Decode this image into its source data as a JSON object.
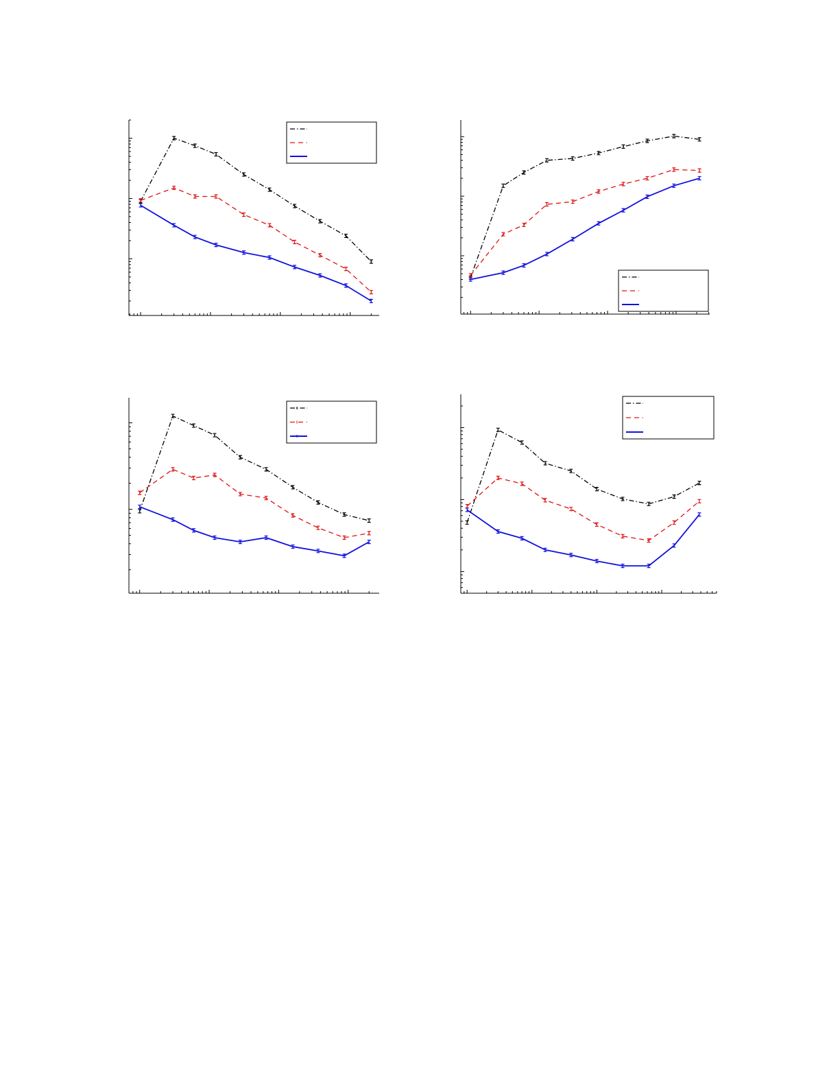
{
  "chart_data": [
    {
      "type": "line",
      "x_scale": "log",
      "y_scale": "log",
      "xlim": [
        0.68,
        2600
      ],
      "ylim": [
        0.115,
        200
      ],
      "grid": false,
      "legend": "top-right",
      "x": [
        1,
        3,
        6,
        12,
        30,
        70,
        160,
        370,
        870,
        2000
      ],
      "series": [
        {
          "style": "dash-dot",
          "color": "#000000",
          "values": [
            9,
            100,
            75,
            54,
            25,
            14,
            7.5,
            4.2,
            2.4,
            0.9
          ]
        },
        {
          "style": "dashed",
          "color": "#e01010",
          "values": [
            9.3,
            15,
            10.8,
            10.8,
            5.4,
            3.6,
            1.9,
            1.15,
            0.68,
            0.28
          ]
        },
        {
          "style": "solid",
          "color": "#1010e0",
          "values": [
            7.7,
            3.6,
            2.3,
            1.7,
            1.27,
            1.05,
            0.73,
            0.53,
            0.36,
            0.2
          ]
        }
      ]
    },
    {
      "type": "line",
      "x_scale": "log",
      "y_scale": "log",
      "xlim": [
        0.72,
        3100
      ],
      "ylim": [
        0.105,
        190
      ],
      "grid": false,
      "legend": "bottom-right",
      "x": [
        1,
        3,
        6,
        13,
        31,
        74,
        170,
        380,
        930,
        2200
      ],
      "series": [
        {
          "style": "dash-dot",
          "color": "#000000",
          "values": [
            0.43,
            15,
            25,
            40,
            43,
            53,
            68,
            85,
            102,
            90
          ]
        },
        {
          "style": "dashed",
          "color": "#e01010",
          "values": [
            0.47,
            2.3,
            3.3,
            7.3,
            8.1,
            12,
            16,
            20,
            28,
            27
          ]
        },
        {
          "style": "solid",
          "color": "#1010e0",
          "values": [
            0.4,
            0.52,
            0.69,
            1.07,
            1.9,
            3.5,
            5.8,
            9.8,
            15,
            20
          ]
        }
      ]
    },
    {
      "type": "line",
      "x_scale": "log",
      "y_scale": "log",
      "xlim": [
        0.7,
        2800
      ],
      "ylim": [
        0.107,
        19.5
      ],
      "grid": false,
      "legend": "top-right",
      "x": [
        1,
        3,
        6,
        12,
        28,
        66,
        160,
        370,
        880,
        2000
      ],
      "series": [
        {
          "style": "dash-dot",
          "color": "#000000",
          "values": [
            0.95,
            12,
            9.3,
            7.2,
            4,
            2.9,
            1.8,
            1.2,
            0.87,
            0.74
          ]
        },
        {
          "style": "dashed",
          "color": "#e01010",
          "values": [
            1.55,
            2.9,
            2.3,
            2.5,
            1.5,
            1.35,
            0.85,
            0.61,
            0.47,
            0.53
          ]
        },
        {
          "style": "solid",
          "color": "#1010e0",
          "values": [
            1.07,
            0.76,
            0.57,
            0.47,
            0.42,
            0.47,
            0.37,
            0.33,
            0.29,
            0.42
          ]
        }
      ]
    },
    {
      "type": "line",
      "x_scale": "log",
      "y_scale": "log",
      "xlim": [
        0.8,
        7000
      ],
      "ylim": [
        0.05,
        29
      ],
      "grid": false,
      "legend": "top-right",
      "x": [
        1,
        3,
        7,
        16,
        40,
        100,
        250,
        630,
        1550,
        3800
      ],
      "series": [
        {
          "style": "dash-dot",
          "color": "#000000",
          "values": [
            0.48,
            9.3,
            6.2,
            3.2,
            2.5,
            1.4,
            1.02,
            0.87,
            1.1,
            1.7
          ]
        },
        {
          "style": "dashed",
          "color": "#e01010",
          "values": [
            0.81,
            2,
            1.66,
            0.98,
            0.74,
            0.45,
            0.31,
            0.27,
            0.48,
            0.95
          ]
        },
        {
          "style": "solid",
          "color": "#1010e0",
          "values": [
            0.72,
            0.36,
            0.29,
            0.2,
            0.17,
            0.14,
            0.12,
            0.12,
            0.23,
            0.62
          ]
        }
      ]
    }
  ]
}
